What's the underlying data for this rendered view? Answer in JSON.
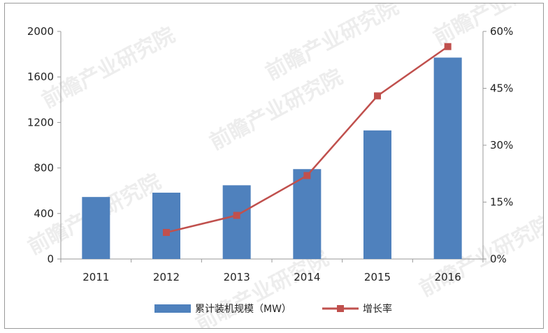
{
  "watermark": "前瞻产业研究院",
  "colors": {
    "bar": "#4f81bd",
    "line": "#c0504d",
    "axis": "#9a9a9a",
    "grid": "#d9d9d9"
  },
  "chart_data": {
    "type": "bar",
    "categories": [
      "2011",
      "2012",
      "2013",
      "2014",
      "2015",
      "2016"
    ],
    "series": [
      {
        "name": "累计装机规模（MW）",
        "type": "bar",
        "axis": "left",
        "values": [
          545,
          583,
          648,
          790,
          1130,
          1770
        ]
      },
      {
        "name": "增长率",
        "type": "line",
        "axis": "right",
        "values": [
          null,
          0.07,
          0.115,
          0.22,
          0.43,
          0.56
        ]
      }
    ],
    "y_left": {
      "ticks": [
        "0",
        "400",
        "800",
        "1200",
        "1600",
        "2000"
      ],
      "ylim": [
        0,
        2000
      ]
    },
    "y_right": {
      "ticks": [
        "0%",
        "15%",
        "30%",
        "45%",
        "60%"
      ],
      "ylim": [
        0,
        0.6
      ]
    },
    "grid": false,
    "legend_position": "bottom"
  }
}
